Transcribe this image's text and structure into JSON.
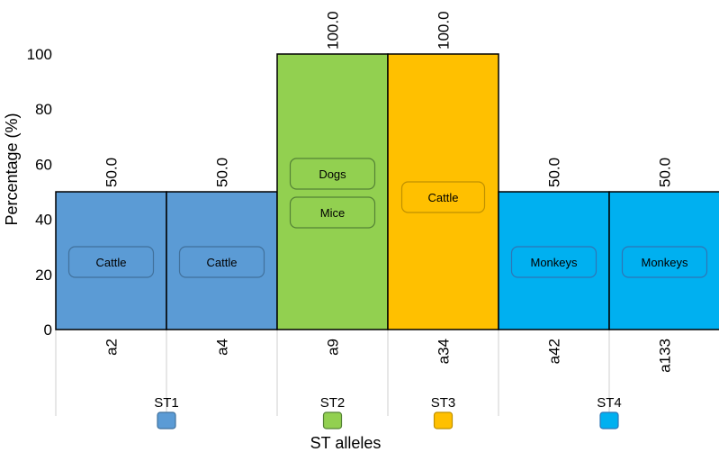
{
  "chart_data": {
    "type": "bar",
    "ylabel": "Percentage  (%)",
    "xlabel": "ST alleles",
    "ylim": [
      0,
      100
    ],
    "yticks": [
      "0",
      "20",
      "40",
      "60",
      "80",
      "100"
    ],
    "grid": false,
    "categories": [
      "a2",
      "a4",
      "a9",
      "a34",
      "a42",
      "a133"
    ],
    "values": [
      50.0,
      50.0,
      100.0,
      100.0,
      50.0,
      50.0
    ],
    "value_labels": [
      "50.0",
      "50.0",
      "100.0",
      "100.0",
      "50.0",
      "50.0"
    ],
    "hosts": [
      [
        "Cattle"
      ],
      [
        "Cattle"
      ],
      [
        "Dogs",
        "Mice"
      ],
      [
        "Cattle"
      ],
      [
        "Monkeys"
      ],
      [
        "Monkeys"
      ]
    ],
    "groups": [
      {
        "name": "ST1",
        "color": "#5b9bd5",
        "box_color": "#41719c"
      },
      {
        "name": "ST2",
        "color": "#92d050",
        "box_color": "#548235"
      },
      {
        "name": "ST3",
        "color": "#ffc000",
        "box_color": "#bf9000"
      },
      {
        "name": "ST4",
        "color": "#00b0f0",
        "box_color": "#2e75b6"
      }
    ],
    "bar_groups": [
      0,
      0,
      1,
      2,
      3,
      3
    ]
  }
}
